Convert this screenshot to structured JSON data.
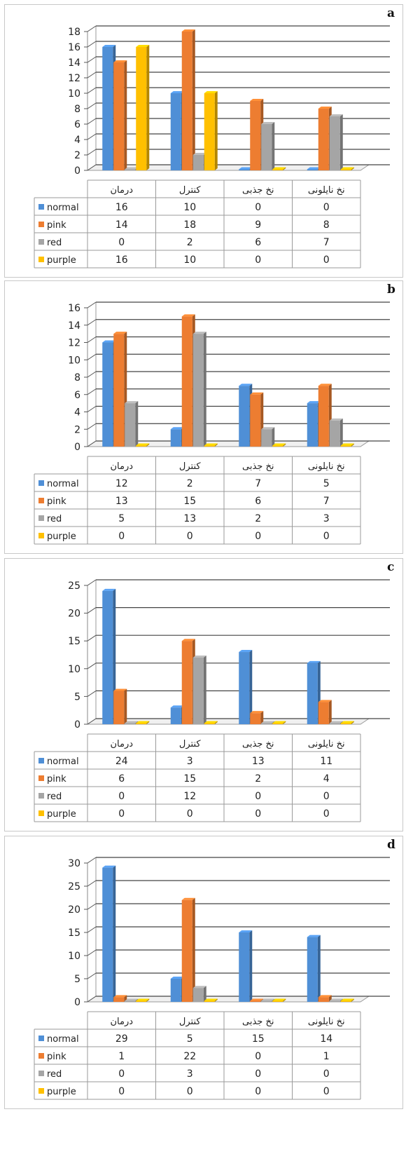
{
  "colors": {
    "normal": "#4f8fd6",
    "pink": "#ed7d31",
    "red": "#a5a5a5",
    "purple": "#ffc000"
  },
  "chart_data": [
    {
      "panel_label": "a",
      "type": "bar",
      "categories": [
        "درمان",
        "کنترل",
        "نخ جذبی",
        "نخ نایلونی"
      ],
      "series": [
        {
          "name": "normal",
          "values": [
            16,
            10,
            0,
            0
          ]
        },
        {
          "name": "pink",
          "values": [
            14,
            18,
            9,
            8
          ]
        },
        {
          "name": "red",
          "values": [
            0,
            2,
            6,
            7
          ]
        },
        {
          "name": "purple",
          "values": [
            16,
            10,
            0,
            0
          ]
        }
      ],
      "ylim": [
        0,
        18
      ],
      "yticks": [
        0,
        2,
        4,
        6,
        8,
        10,
        12,
        14,
        16,
        18
      ],
      "grid": true,
      "legend": "data table below"
    },
    {
      "panel_label": "b",
      "type": "bar",
      "categories": [
        "درمان",
        "کنترل",
        "نخ جذبی",
        "نخ نایلونی"
      ],
      "series": [
        {
          "name": "normal",
          "values": [
            12,
            2,
            7,
            5
          ]
        },
        {
          "name": "pink",
          "values": [
            13,
            15,
            6,
            7
          ]
        },
        {
          "name": "red",
          "values": [
            5,
            13,
            2,
            3
          ]
        },
        {
          "name": "purple",
          "values": [
            0,
            0,
            0,
            0
          ]
        }
      ],
      "ylim": [
        0,
        16
      ],
      "yticks": [
        0,
        2,
        4,
        6,
        8,
        10,
        12,
        14,
        16
      ],
      "grid": true,
      "legend": "data table below"
    },
    {
      "panel_label": "c",
      "type": "bar",
      "categories": [
        "درمان",
        "کنترل",
        "نخ جذبی",
        "نخ نایلونی"
      ],
      "series": [
        {
          "name": "normal",
          "values": [
            24,
            3,
            13,
            11
          ]
        },
        {
          "name": "pink",
          "values": [
            6,
            15,
            2,
            4
          ]
        },
        {
          "name": "red",
          "values": [
            0,
            12,
            0,
            0
          ]
        },
        {
          "name": "purple",
          "values": [
            0,
            0,
            0,
            0
          ]
        }
      ],
      "ylim": [
        0,
        25
      ],
      "yticks": [
        0,
        5,
        10,
        15,
        20,
        25
      ],
      "grid": true,
      "legend": "data table below"
    },
    {
      "panel_label": "d",
      "type": "bar",
      "categories": [
        "درمان",
        "کنترل",
        "نخ جذبی",
        "نخ نایلونی"
      ],
      "series": [
        {
          "name": "normal",
          "values": [
            29,
            5,
            15,
            14
          ]
        },
        {
          "name": "pink",
          "values": [
            1,
            22,
            0,
            1
          ]
        },
        {
          "name": "red",
          "values": [
            0,
            3,
            0,
            0
          ]
        },
        {
          "name": "purple",
          "values": [
            0,
            0,
            0,
            0
          ]
        }
      ],
      "ylim": [
        0,
        30
      ],
      "yticks": [
        0,
        5,
        10,
        15,
        20,
        25,
        30
      ],
      "grid": true,
      "legend": "data table below"
    }
  ]
}
